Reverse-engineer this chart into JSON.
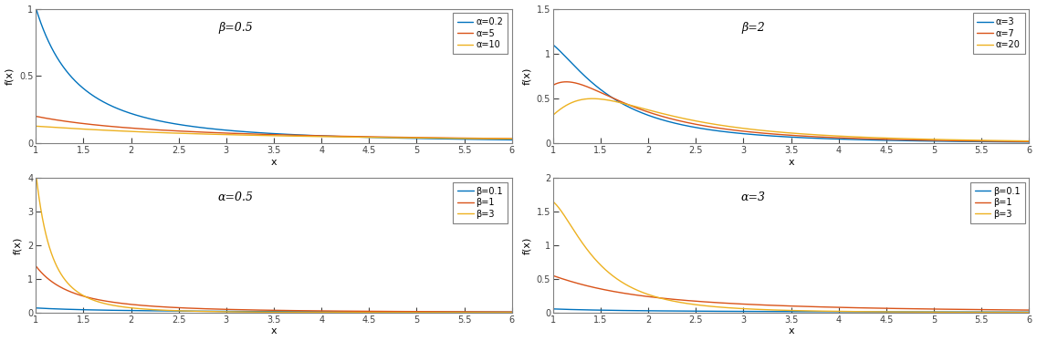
{
  "panels": [
    {
      "title": "β=0.5",
      "curves": [
        {
          "alpha": 0.2,
          "beta": 0.5,
          "label": "α=0.2",
          "color": "#0072BD"
        },
        {
          "alpha": 5,
          "beta": 0.5,
          "label": "α=5",
          "color": "#D95319"
        },
        {
          "alpha": 10,
          "beta": 0.5,
          "label": "α=10",
          "color": "#EDB120"
        }
      ],
      "ylim": [
        0,
        1
      ],
      "yticks": [
        0,
        0.5,
        1
      ],
      "ylabel": "f(x)"
    },
    {
      "title": "β=2",
      "curves": [
        {
          "alpha": 3,
          "beta": 2,
          "label": "α=3",
          "color": "#0072BD"
        },
        {
          "alpha": 7,
          "beta": 2,
          "label": "α=7",
          "color": "#D95319"
        },
        {
          "alpha": 20,
          "beta": 2,
          "label": "α=20",
          "color": "#EDB120"
        }
      ],
      "ylim": [
        0,
        1.5
      ],
      "yticks": [
        0,
        0.5,
        1,
        1.5
      ],
      "ylabel": "f(x)"
    },
    {
      "title": "α=0.5",
      "curves": [
        {
          "alpha": 0.5,
          "beta": 0.1,
          "label": "β=0.1",
          "color": "#0072BD"
        },
        {
          "alpha": 0.5,
          "beta": 1,
          "label": "β=1",
          "color": "#D95319"
        },
        {
          "alpha": 0.5,
          "beta": 3,
          "label": "β=3",
          "color": "#EDB120"
        }
      ],
      "ylim": [
        0,
        4
      ],
      "yticks": [
        0,
        1,
        2,
        3,
        4
      ],
      "ylabel": "f(x)"
    },
    {
      "title": "α=3",
      "curves": [
        {
          "alpha": 3,
          "beta": 0.1,
          "label": "β=0.1",
          "color": "#0072BD"
        },
        {
          "alpha": 3,
          "beta": 1,
          "label": "β=1",
          "color": "#D95319"
        },
        {
          "alpha": 3,
          "beta": 3,
          "label": "β=3",
          "color": "#EDB120"
        }
      ],
      "ylim": [
        0,
        2
      ],
      "yticks": [
        0,
        0.5,
        1,
        1.5,
        2
      ],
      "ylabel": "f(x)"
    }
  ],
  "xlim": [
    1,
    6
  ],
  "xticks": [
    1,
    1.5,
    2,
    2.5,
    3,
    3.5,
    4,
    4.5,
    5,
    5.5,
    6
  ],
  "xlabel": "x",
  "line_width": 1.0,
  "figsize": [
    11.36,
    3.74
  ],
  "dpi": 100
}
